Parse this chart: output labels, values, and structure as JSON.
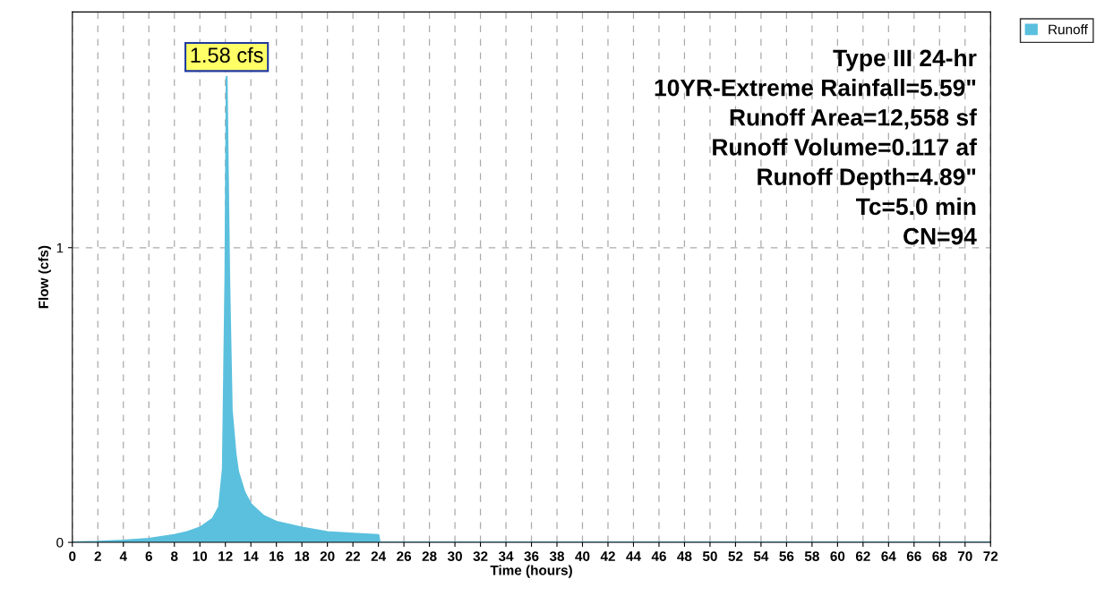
{
  "chart_data": {
    "type": "area",
    "xlabel": "Time (hours)",
    "ylabel": "Flow (cfs)",
    "x": [
      0,
      2,
      4,
      6,
      8,
      9,
      10,
      11,
      11.5,
      11.8,
      12.0,
      12.1,
      12.3,
      12.5,
      12.8,
      13,
      13.5,
      14,
      15,
      16,
      18,
      20,
      22,
      24,
      24.1,
      72
    ],
    "series": [
      {
        "name": "Runoff",
        "color": "#5bc0de",
        "values": [
          0,
          0.002,
          0.006,
          0.012,
          0.025,
          0.035,
          0.05,
          0.08,
          0.12,
          0.25,
          0.9,
          1.58,
          0.9,
          0.45,
          0.3,
          0.24,
          0.17,
          0.13,
          0.09,
          0.07,
          0.05,
          0.035,
          0.03,
          0.025,
          0,
          0
        ]
      }
    ],
    "xlim": [
      0,
      72
    ],
    "xticks": [
      0,
      2,
      4,
      6,
      8,
      10,
      12,
      14,
      16,
      18,
      20,
      22,
      24,
      26,
      28,
      30,
      32,
      34,
      36,
      38,
      40,
      42,
      44,
      46,
      48,
      50,
      52,
      54,
      56,
      58,
      60,
      62,
      64,
      66,
      68,
      70,
      72
    ],
    "ylim": [
      0,
      1.8
    ],
    "yticks": [
      0,
      1
    ],
    "grid": true,
    "legend": "top right",
    "annotations": [
      {
        "text": "1.58 cfs",
        "x": 12.1,
        "y": 1.58
      },
      "Type III 24-hr\n10YR-Extreme Rainfall=5.59\"\nRunoff Area=12,558 sf\nRunoff Volume=0.117 af\nRunoff Depth=4.89\"\nTc=5.0 min\nCN=94"
    ]
  }
}
